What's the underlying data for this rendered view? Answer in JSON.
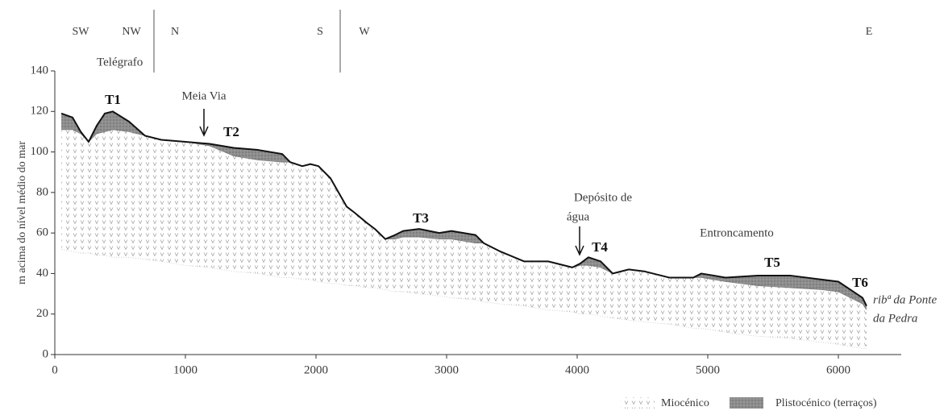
{
  "chart_data": {
    "type": "profile",
    "ylabel": "m acima do nível médio do mar",
    "x": [
      50,
      136,
      198,
      259,
      321,
      383,
      444,
      568,
      691,
      815,
      1000,
      1185,
      1370,
      1556,
      1741,
      1802,
      1895,
      1957,
      2019,
      2111,
      2173,
      2235,
      2296,
      2389,
      2451,
      2531,
      2605,
      2667,
      2790,
      2944,
      3037,
      3222,
      3284,
      3407,
      3593,
      3778,
      3963,
      4025,
      4086,
      4179,
      4272,
      4395,
      4519,
      4704,
      4889,
      4951,
      5136,
      5383,
      5630,
      5877,
      6000,
      6093,
      6185,
      6216
    ],
    "series": [
      {
        "name": "Miocénico",
        "color": "#999999",
        "values": [
          111,
          111,
          109,
          105,
          109,
          110,
          111,
          110,
          108,
          106,
          105,
          103,
          98,
          96,
          95,
          95,
          93,
          94,
          93,
          87,
          80,
          73,
          70,
          65,
          62,
          57,
          57,
          58,
          58,
          57,
          57,
          55,
          55,
          51,
          46,
          46,
          43,
          44,
          44,
          43,
          40,
          42,
          41,
          38,
          38,
          38,
          36,
          34,
          33,
          32,
          31,
          28,
          25,
          22
        ],
        "base": [
          52,
          51,
          50,
          50,
          49,
          49,
          48,
          48,
          47,
          46,
          44,
          43,
          41,
          40,
          38,
          38,
          37,
          37,
          36,
          35,
          35,
          34,
          34,
          33,
          33,
          32,
          31,
          31,
          30,
          29,
          28,
          27,
          26,
          25,
          24,
          22,
          21,
          20,
          20,
          19,
          18,
          17,
          16,
          15,
          13,
          13,
          11,
          9,
          8,
          6,
          5,
          4,
          3,
          3
        ]
      },
      {
        "name": "Plistocénico (terraços)",
        "color": "#8c8c8c",
        "values": [
          119,
          117,
          110,
          105,
          113,
          119,
          120,
          115,
          108,
          106,
          105,
          104,
          102,
          101,
          99,
          95,
          93,
          94,
          93,
          87,
          80,
          73,
          70,
          65,
          62,
          57,
          59,
          61,
          62,
          60,
          61,
          59,
          55,
          51,
          46,
          46,
          43,
          45,
          48,
          46,
          40,
          42,
          41,
          38,
          38,
          40,
          38,
          39,
          39,
          37,
          36,
          32,
          28,
          24
        ]
      }
    ],
    "xlim": [
      0,
      6500
    ],
    "ylim": [
      0,
      140
    ],
    "xticks": [
      0,
      1000,
      2000,
      3000,
      4000,
      5000,
      6000
    ],
    "yticks": [
      0,
      20,
      40,
      60,
      80,
      100,
      120,
      140
    ],
    "directions": [
      "SW",
      "NW",
      "N",
      "S",
      "W",
      "E"
    ],
    "annotations": [
      "Telégrafo",
      "T1",
      "Meia Via",
      "T2",
      "T3",
      "Depósito de",
      "água",
      "T4",
      "Entroncamento",
      "T5",
      "T6",
      "ribª da Ponte",
      "da Pedra"
    ],
    "legend": "bottom-right"
  }
}
